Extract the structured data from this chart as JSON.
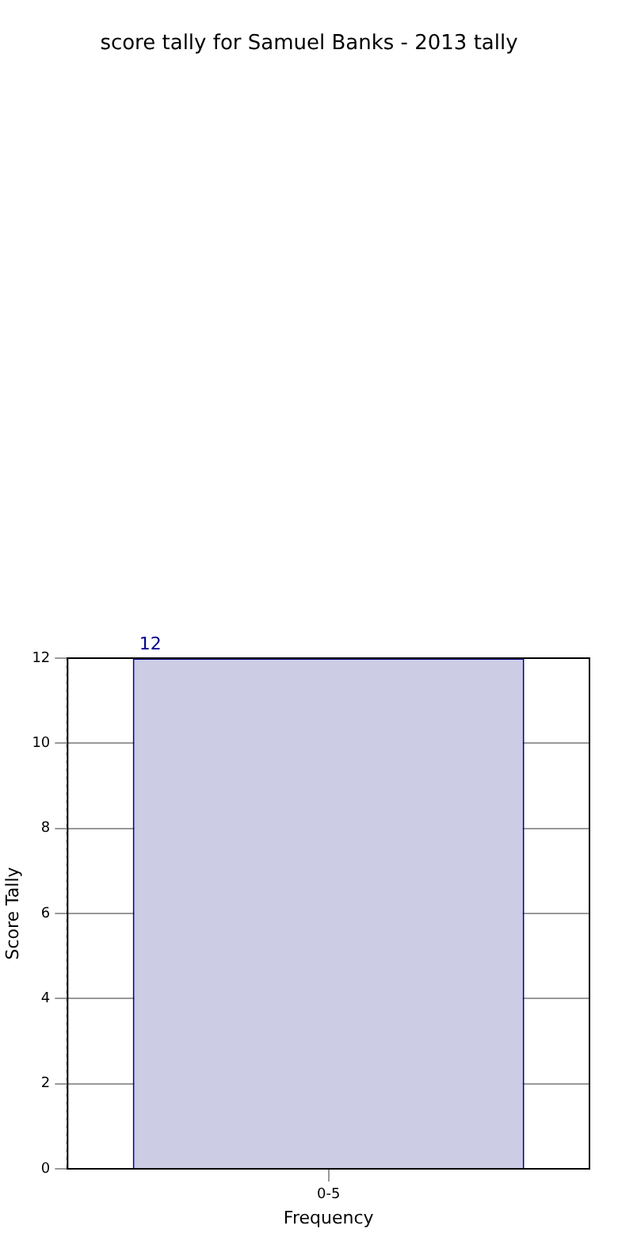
{
  "chart_data": {
    "type": "bar",
    "title": "score tally for Samuel Banks - 2013 tally",
    "xlabel": "Frequency",
    "ylabel": "Score Tally",
    "categories": [
      "0-5"
    ],
    "values": [
      12
    ],
    "color": "#ccccE5",
    "ylim": [
      0,
      12
    ],
    "yticks": [
      0,
      2,
      4,
      6,
      8,
      10,
      12
    ],
    "grid": true,
    "data_labels": true
  }
}
